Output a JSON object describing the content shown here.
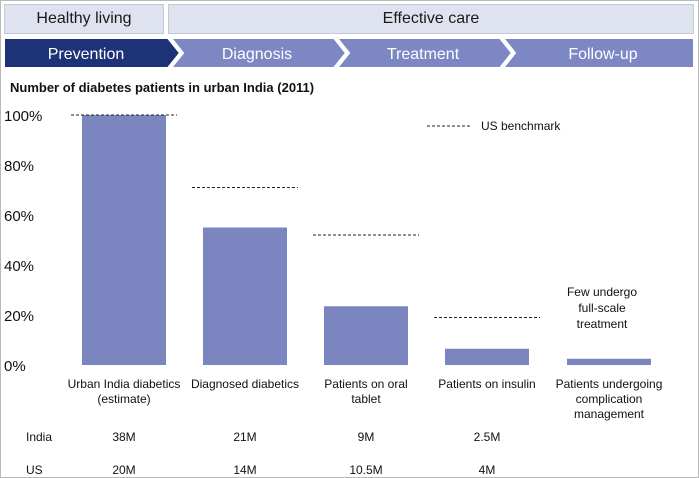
{
  "header": {
    "healthy_living": "Healthy living",
    "effective_care": "Effective care"
  },
  "stages": [
    {
      "label": "Prevention",
      "active": true
    },
    {
      "label": "Diagnosis",
      "active": false
    },
    {
      "label": "Treatment",
      "active": false
    },
    {
      "label": "Follow-up",
      "active": false
    }
  ],
  "colors": {
    "stage_active": "#1e3278",
    "stage_inactive": "#7c87c4",
    "bar": "#7b85bf",
    "header_box": "#dfe3ef"
  },
  "chart_data": {
    "type": "bar",
    "title": "Number of diabetes patients in urban India (2011)",
    "categories": [
      [
        "Urban India diabetics",
        "(estimate)"
      ],
      [
        "Diagnosed diabetics"
      ],
      [
        "Patients on oral",
        "tablet"
      ],
      [
        "Patients on insulin"
      ],
      [
        "Patients undergoing",
        "complication",
        "management"
      ]
    ],
    "series": [
      {
        "name": "",
        "values": [
          100,
          55,
          23.5,
          6.5,
          2.5
        ]
      },
      {
        "name": "US benchmark",
        "values": [
          100,
          71,
          52,
          19,
          null
        ],
        "style": "dashed"
      }
    ],
    "ylim": [
      0,
      100
    ],
    "yticks": [
      "0%",
      "20%",
      "40%",
      "60%",
      "80%",
      "100%"
    ],
    "ytick_values": [
      0,
      20,
      40,
      60,
      80,
      100
    ],
    "legend": {
      "label": "US benchmark",
      "placement": "top-right"
    },
    "annotation": [
      "Few undergo",
      "full-scale",
      "treatment"
    ],
    "grid": false
  },
  "table": {
    "rows": [
      {
        "label": "India",
        "values": [
          "38M",
          "21M",
          "9M",
          "2.5M"
        ]
      },
      {
        "label": "US",
        "values": [
          "20M",
          "14M",
          "10.5M",
          "4M"
        ]
      }
    ]
  }
}
